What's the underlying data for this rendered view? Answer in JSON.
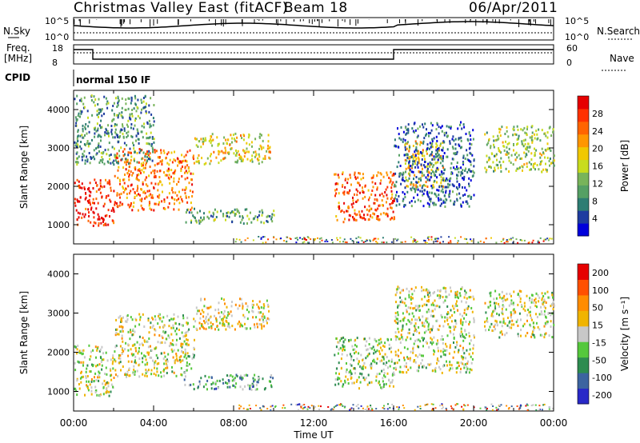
{
  "header": {
    "title": "Christmas Valley East (fitACF)",
    "beam": "Beam 18",
    "date": "06/Apr/2011"
  },
  "top_panel": {
    "nsky_label": "N.Sky",
    "nsearch_label": "N.Search",
    "nsky_ticks": [
      "10^5",
      "10^0"
    ],
    "nsearch_ticks": [
      "10^5",
      "10^0"
    ],
    "freq_label": "Freq.",
    "freq_unit": "[MHz]",
    "freq_ticks": [
      "18",
      "8"
    ],
    "nave_label": "Nave",
    "nave_ticks": [
      "60",
      "0"
    ],
    "cpid_label": "CPID",
    "cpid_value": "normal 150 IF"
  },
  "chart_data": [
    {
      "type": "heatmap",
      "parameter": "Power",
      "ylabel": "Slant Range [km]",
      "ylim": [
        500,
        4500
      ],
      "yticks": [
        "1000",
        "2000",
        "3000",
        "4000"
      ],
      "colorbar_label": "Power [dB]",
      "colorbar_ticks": [
        "4",
        "8",
        "12",
        "16",
        "20",
        "24",
        "28"
      ],
      "colorbar_colors": [
        "#0000dc",
        "#1e3ca0",
        "#2d7d73",
        "#55a064",
        "#78b45a",
        "#c8dc1e",
        "#f0c800",
        "#ff9600",
        "#ff6400",
        "#ff3200",
        "#e60000"
      ],
      "regions": [
        {
          "t0": 0.0,
          "t1": 2.0,
          "r0": 1000,
          "r1": 2200,
          "level": 0.9
        },
        {
          "t0": 2.0,
          "t1": 6.0,
          "r0": 1400,
          "r1": 3000,
          "level": 0.75
        },
        {
          "t0": 6.0,
          "t1": 9.8,
          "r0": 2600,
          "r1": 3400,
          "level": 0.55
        },
        {
          "t0": 5.5,
          "t1": 10.0,
          "r0": 1050,
          "r1": 1450,
          "level": 0.35
        },
        {
          "t0": 0.0,
          "t1": 4.0,
          "r0": 2600,
          "r1": 4400,
          "level": 0.3
        },
        {
          "t0": 13.0,
          "t1": 16.0,
          "r0": 1100,
          "r1": 2400,
          "level": 0.8
        },
        {
          "t0": 16.5,
          "t1": 18.5,
          "r0": 2000,
          "r1": 3200,
          "level": 0.6
        },
        {
          "t0": 16.0,
          "t1": 20.0,
          "r0": 1500,
          "r1": 3700,
          "level": 0.2
        },
        {
          "t0": 20.5,
          "t1": 24.0,
          "r0": 2400,
          "r1": 3600,
          "level": 0.45
        }
      ]
    },
    {
      "type": "heatmap",
      "parameter": "Velocity",
      "ylabel": "Slant Range [km]",
      "xlabel": "Time UT",
      "ylim": [
        500,
        4500
      ],
      "yticks": [
        "1000",
        "2000",
        "3000",
        "4000"
      ],
      "xticks": [
        "00:00",
        "04:00",
        "08:00",
        "12:00",
        "16:00",
        "20:00",
        "00:00"
      ],
      "colorbar_label": "Velocity [m s⁻¹]",
      "colorbar_ticks": [
        "200",
        "100",
        "50",
        "15",
        "-15",
        "-50",
        "-100",
        "-200"
      ],
      "colorbar_colors": [
        "#2828c8",
        "#3c64a0",
        "#2d8c50",
        "#55c83c",
        "#c8c8c8",
        "#f0b400",
        "#ff8c00",
        "#ff5000",
        "#e60000"
      ],
      "regions": [
        {
          "t0": 0.0,
          "t1": 2.0,
          "r0": 900,
          "r1": 2200,
          "level": 0.5
        },
        {
          "t0": 2.0,
          "t1": 6.0,
          "r0": 1400,
          "r1": 3000,
          "level": 0.5
        },
        {
          "t0": 6.0,
          "t1": 9.8,
          "r0": 2600,
          "r1": 3400,
          "level": 0.55
        },
        {
          "t0": 5.5,
          "t1": 10.0,
          "r0": 1050,
          "r1": 1450,
          "level": 0.3
        },
        {
          "t0": 13.0,
          "t1": 16.0,
          "r0": 1100,
          "r1": 2400,
          "level": 0.45
        },
        {
          "t0": 16.0,
          "t1": 20.0,
          "r0": 1500,
          "r1": 3700,
          "level": 0.5
        },
        {
          "t0": 20.5,
          "t1": 24.0,
          "r0": 2400,
          "r1": 3600,
          "level": 0.5
        }
      ]
    }
  ]
}
